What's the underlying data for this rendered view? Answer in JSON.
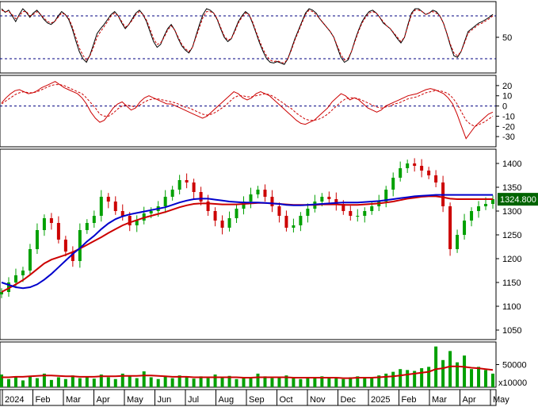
{
  "chart_data": [
    {
      "type": "line",
      "panel": "stochastic",
      "ylim": [
        0,
        100
      ],
      "y_ticks": [
        50
      ],
      "reference_lines": [
        20,
        80
      ],
      "grid": false,
      "colors": {
        "k": "#000000",
        "d": "#cc0000",
        "ref": "#000080"
      },
      "series": [
        {
          "values": [
            90,
            85,
            88,
            80,
            72,
            82,
            90,
            85,
            78,
            84,
            88,
            82,
            75,
            70,
            68,
            72,
            80,
            86,
            82,
            75,
            62,
            45,
            30,
            20,
            15,
            25,
            40,
            55,
            62,
            68,
            75,
            82,
            86,
            80,
            70,
            62,
            68,
            76,
            84,
            88,
            82,
            72,
            58,
            44,
            36,
            40,
            52,
            62,
            68,
            60,
            48,
            38,
            32,
            28,
            36,
            52,
            68,
            82,
            90,
            88,
            84,
            75,
            62,
            50,
            44,
            48,
            60,
            72,
            80,
            86,
            82,
            70,
            56,
            42,
            30,
            20,
            15,
            14,
            16,
            14,
            12,
            20,
            34,
            48,
            60,
            72,
            84,
            90,
            88,
            84,
            76,
            70,
            64,
            58,
            50,
            36,
            22,
            15,
            18,
            30,
            46,
            60,
            72,
            80,
            86,
            88,
            84,
            78,
            70,
            66,
            62,
            55,
            48,
            42,
            50,
            68,
            84,
            90,
            90,
            86,
            82,
            84,
            88,
            86,
            80,
            70,
            55,
            38,
            24,
            22,
            30,
            44,
            58,
            62,
            66,
            70,
            72,
            75,
            78,
            82
          ]
        },
        {
          "values": [
            88,
            86,
            86,
            82,
            76,
            80,
            86,
            86,
            80,
            82,
            86,
            82,
            77,
            72,
            70,
            72,
            78,
            84,
            82,
            77,
            65,
            50,
            35,
            25,
            18,
            24,
            36,
            50,
            58,
            65,
            72,
            80,
            84,
            80,
            72,
            64,
            68,
            74,
            82,
            86,
            82,
            74,
            62,
            48,
            40,
            42,
            50,
            60,
            66,
            60,
            50,
            40,
            34,
            30,
            36,
            50,
            64,
            78,
            86,
            86,
            84,
            76,
            64,
            52,
            46,
            48,
            58,
            70,
            78,
            84,
            82,
            72,
            58,
            45,
            33,
            24,
            18,
            16,
            17,
            15,
            14,
            20,
            32,
            46,
            58,
            70,
            82,
            88,
            86,
            82,
            76,
            70,
            64,
            58,
            50,
            38,
            26,
            18,
            20,
            30,
            44,
            58,
            70,
            78,
            84,
            86,
            84,
            78,
            72,
            66,
            62,
            56,
            50,
            44,
            50,
            66,
            82,
            88,
            88,
            86,
            82,
            84,
            86,
            84,
            80,
            70,
            56,
            40,
            28,
            24,
            30,
            42,
            56,
            60,
            64,
            68,
            70,
            73,
            76,
            80
          ]
        }
      ]
    },
    {
      "type": "line",
      "panel": "macd",
      "ylim": [
        -40,
        30
      ],
      "y_ticks": [
        20,
        10,
        0,
        -10,
        -20,
        -30
      ],
      "reference_lines": [
        0
      ],
      "grid": false,
      "colors": {
        "macd": "#cc0000",
        "signal": "#cc0000",
        "ref": "#000080"
      },
      "series": [
        {
          "values": [
            3,
            8,
            12,
            15,
            16,
            14,
            12,
            13,
            15,
            18,
            20,
            22,
            24,
            21,
            18,
            16,
            14,
            12,
            8,
            2,
            -6,
            -12,
            -16,
            -14,
            -8,
            -2,
            2,
            4,
            0,
            -4,
            -2,
            4,
            8,
            10,
            8,
            6,
            4,
            2,
            2,
            0,
            -2,
            -4,
            -6,
            -8,
            -10,
            -12,
            -10,
            -6,
            -2,
            2,
            6,
            10,
            14,
            12,
            8,
            6,
            8,
            12,
            14,
            12,
            10,
            6,
            2,
            -2,
            -6,
            -10,
            -14,
            -17,
            -18,
            -16,
            -14,
            -10,
            -6,
            -2,
            4,
            8,
            12,
            10,
            6,
            8,
            6,
            2,
            -2,
            -4,
            -6,
            -4,
            0,
            2,
            4,
            6,
            8,
            10,
            11,
            12,
            14,
            16,
            17,
            16,
            14,
            12,
            8,
            2,
            -8,
            -20,
            -32,
            -26,
            -20,
            -16,
            -12,
            -8,
            -6
          ]
        },
        {
          "values": [
            2,
            5,
            8,
            11,
            13,
            14,
            13,
            13,
            14,
            16,
            18,
            20,
            21,
            21,
            20,
            18,
            16,
            14,
            12,
            8,
            3,
            -2,
            -8,
            -10,
            -10,
            -7,
            -3,
            0,
            1,
            0,
            -1,
            1,
            4,
            6,
            7,
            7,
            6,
            5,
            4,
            3,
            1,
            -1,
            -2,
            -4,
            -6,
            -8,
            -9,
            -8,
            -6,
            -3,
            0,
            4,
            8,
            10,
            10,
            9,
            9,
            10,
            11,
            12,
            11,
            9,
            6,
            3,
            0,
            -3,
            -7,
            -10,
            -13,
            -14,
            -14,
            -13,
            -11,
            -8,
            -4,
            0,
            4,
            7,
            8,
            8,
            7,
            5,
            3,
            1,
            -1,
            -2,
            -1,
            0,
            2,
            3,
            5,
            7,
            8,
            9,
            11,
            13,
            14,
            15,
            15,
            14,
            12,
            8,
            2,
            -6,
            -14,
            -18,
            -20,
            -18,
            -16,
            -13,
            -10
          ]
        }
      ]
    },
    {
      "type": "bar",
      "panel": "price",
      "ylim": [
        1030,
        1430
      ],
      "y_ticks": [
        1400,
        1350,
        1300,
        1250,
        1200,
        1150,
        1100,
        1050
      ],
      "last_price_label": "1324.800",
      "colors": {
        "up": "#00a000",
        "down": "#cc0000",
        "ma_long": "#cc0000",
        "ma_mid": "#0000cc",
        "label_bg": "#006400",
        "label_text": "#ffffff"
      },
      "x": [
        "2024-01",
        "2024-02",
        "2024-03",
        "2024-04",
        "2024-05",
        "2024-06",
        "2024-07",
        "2024-08",
        "2024-09",
        "2024-10",
        "2024-11",
        "2024-12",
        "2025-01",
        "2025-02",
        "2025-03",
        "2025-04",
        "2025-05"
      ],
      "close_samples": [
        1130,
        1150,
        1165,
        1175,
        1220,
        1260,
        1285,
        1275,
        1240,
        1215,
        1195,
        1260,
        1275,
        1290,
        1330,
        1320,
        1300,
        1290,
        1270,
        1280,
        1295,
        1300,
        1310,
        1330,
        1345,
        1365,
        1360,
        1340,
        1320,
        1300,
        1280,
        1265,
        1285,
        1305,
        1320,
        1335,
        1345,
        1330,
        1310,
        1290,
        1265,
        1270,
        1290,
        1305,
        1320,
        1330,
        1325,
        1315,
        1300,
        1290,
        1290,
        1300,
        1310,
        1320,
        1345,
        1370,
        1390,
        1400,
        1395,
        1385,
        1375,
        1360,
        1310,
        1220,
        1250,
        1280,
        1300,
        1310,
        1315,
        1325
      ],
      "ma_long": [
        1130,
        1138,
        1146,
        1155,
        1166,
        1178,
        1190,
        1198,
        1203,
        1208,
        1214,
        1221,
        1229,
        1237,
        1245,
        1254,
        1262,
        1270,
        1276,
        1281,
        1286,
        1290,
        1294,
        1298,
        1303,
        1308,
        1312,
        1315,
        1316,
        1316,
        1315,
        1314,
        1314,
        1314,
        1315,
        1316,
        1317,
        1317,
        1316,
        1315,
        1314,
        1313,
        1313,
        1313,
        1313,
        1314,
        1314,
        1314,
        1313,
        1313,
        1313,
        1314,
        1315,
        1316,
        1318,
        1320,
        1323,
        1326,
        1328,
        1330,
        1331,
        1331,
        1329,
        1326,
        1325,
        1325,
        1325,
        1325,
        1325,
        1325
      ],
      "ma_mid": [
        1150,
        1145,
        1140,
        1138,
        1140,
        1146,
        1156,
        1168,
        1182,
        1196,
        1210,
        1222,
        1236,
        1248,
        1262,
        1274,
        1283,
        1289,
        1293,
        1296,
        1299,
        1302,
        1305,
        1308,
        1313,
        1318,
        1322,
        1325,
        1326,
        1326,
        1324,
        1322,
        1320,
        1319,
        1318,
        1318,
        1318,
        1317,
        1316,
        1315,
        1313,
        1312,
        1312,
        1313,
        1314,
        1315,
        1316,
        1317,
        1318,
        1318,
        1318,
        1319,
        1320,
        1321,
        1323,
        1325,
        1327,
        1329,
        1331,
        1332,
        1333,
        1334,
        1334,
        1334,
        1334,
        1334,
        1334,
        1334,
        1334,
        1334
      ]
    },
    {
      "type": "bar",
      "panel": "volume",
      "unit_label": "x10000",
      "ylim": [
        0,
        100000
      ],
      "y_ticks": [
        50000
      ],
      "colors": {
        "bar": "#00a000",
        "ma": "#cc0000"
      },
      "values": [
        28000,
        18000,
        22000,
        15000,
        25000,
        20000,
        30000,
        16000,
        22000,
        18000,
        26000,
        20000,
        24000,
        19000,
        28000,
        22000,
        18000,
        30000,
        25000,
        20000,
        35000,
        22000,
        18000,
        24000,
        20000,
        26000,
        22000,
        19000,
        24000,
        20000,
        28000,
        22000,
        25000,
        18000,
        22000,
        20000,
        30000,
        24000,
        20000,
        22000,
        26000,
        20000,
        18000,
        22000,
        20000,
        24000,
        22000,
        20000,
        18000,
        22000,
        24000,
        20000,
        22000,
        26000,
        30000,
        34000,
        40000,
        38000,
        36000,
        42000,
        45000,
        90000,
        60000,
        80000,
        55000,
        70000,
        40000,
        45000,
        38000,
        30000
      ],
      "ma": [
        22000,
        22000,
        23000,
        23000,
        24000,
        25000,
        26000,
        26000,
        25000,
        24000,
        24000,
        23000,
        23000,
        23000,
        24000,
        24000,
        24000,
        25000,
        25000,
        25000,
        26000,
        26000,
        25000,
        24000,
        23000,
        23000,
        23000,
        22000,
        22000,
        22000,
        22000,
        22000,
        22000,
        22000,
        21000,
        21000,
        22000,
        22000,
        22000,
        22000,
        22000,
        21000,
        21000,
        21000,
        21000,
        21000,
        21000,
        21000,
        20000,
        20000,
        21000,
        21000,
        21000,
        22000,
        23000,
        24000,
        26000,
        28000,
        30000,
        32000,
        34000,
        40000,
        42000,
        46000,
        46000,
        45000,
        43000,
        42000,
        40000,
        38000
      ]
    }
  ],
  "x_axis": {
    "labels": [
      "2024",
      "Feb",
      "Mar",
      "Apr",
      "May",
      "Jun",
      "Jul",
      "Aug",
      "Sep",
      "Oct",
      "Nov",
      "Dec",
      "2025",
      "Feb",
      "Mar",
      "Apr",
      "May"
    ]
  }
}
